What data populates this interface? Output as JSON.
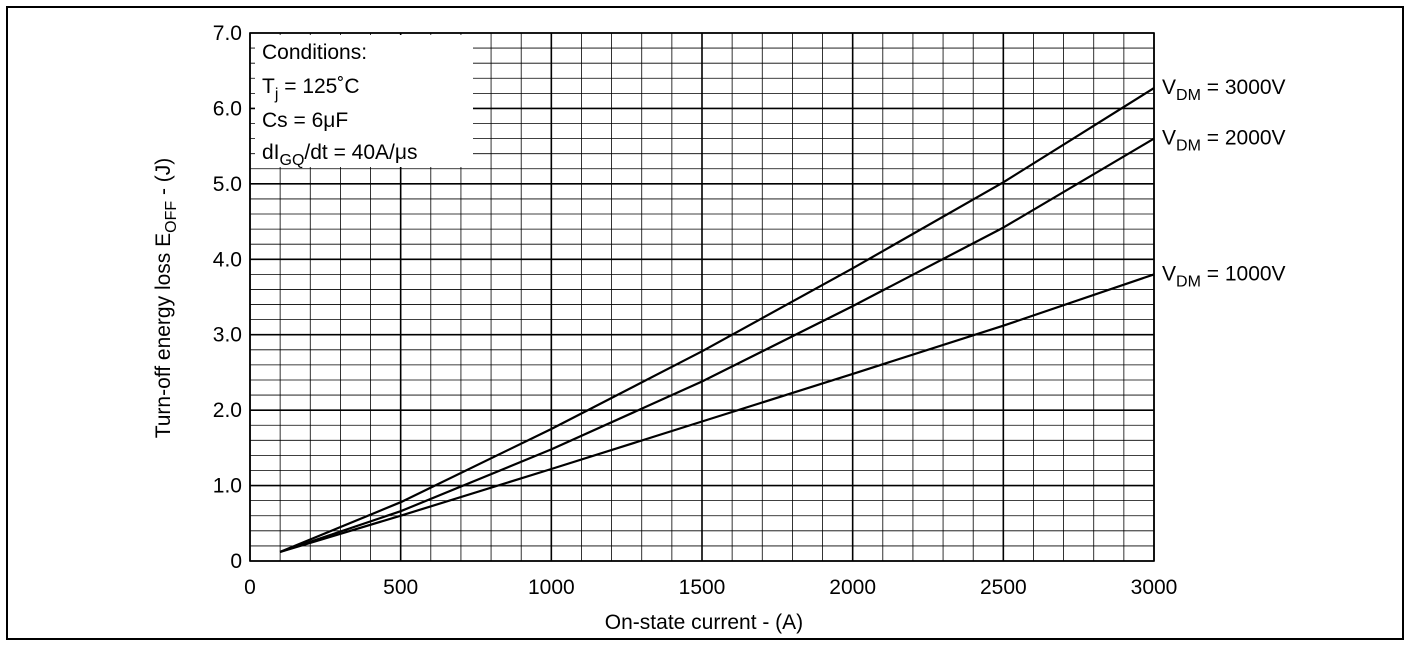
{
  "chart_data": {
    "type": "line",
    "title": "",
    "xlabel": "On-state current - (A)",
    "ylabel": {
      "main": "Turn-off energy loss E",
      "sub": "OFF",
      "tail": " - (J)"
    },
    "xlim": [
      0,
      3000
    ],
    "ylim": [
      0,
      7
    ],
    "x_ticks": [
      "0",
      "500",
      "1000",
      "1500",
      "2000",
      "2500",
      "3000"
    ],
    "y_ticks": [
      "0",
      "1.0",
      "2.0",
      "3.0",
      "4.0",
      "5.0",
      "6.0",
      "7.0"
    ],
    "grid": true,
    "conditions": {
      "title": "Conditions:",
      "tj": {
        "main": "T",
        "sub": "j",
        "tail": " = 125˚C"
      },
      "cs": "Cs = 6μF",
      "di": {
        "main": "dI",
        "sub": "GQ",
        "tail": "/dt = 40A/μs"
      }
    },
    "series": [
      {
        "name": {
          "main": "V",
          "sub": "DM",
          "tail": " = 3000V"
        },
        "x": [
          100,
          500,
          1000,
          1500,
          2000,
          2500,
          3000
        ],
        "y": [
          0.12,
          0.78,
          1.75,
          2.78,
          3.88,
          5.02,
          6.27
        ]
      },
      {
        "name": {
          "main": "V",
          "sub": "DM",
          "tail": " = 2000V"
        },
        "x": [
          100,
          500,
          1000,
          1500,
          2000,
          2500,
          3000
        ],
        "y": [
          0.12,
          0.66,
          1.48,
          2.38,
          3.38,
          4.42,
          5.6
        ]
      },
      {
        "name": {
          "main": "V",
          "sub": "DM",
          "tail": " = 1000V"
        },
        "x": [
          100,
          500,
          1000,
          1500,
          2000,
          2500,
          3000
        ],
        "y": [
          0.12,
          0.6,
          1.22,
          1.85,
          2.48,
          3.12,
          3.8
        ]
      }
    ]
  }
}
